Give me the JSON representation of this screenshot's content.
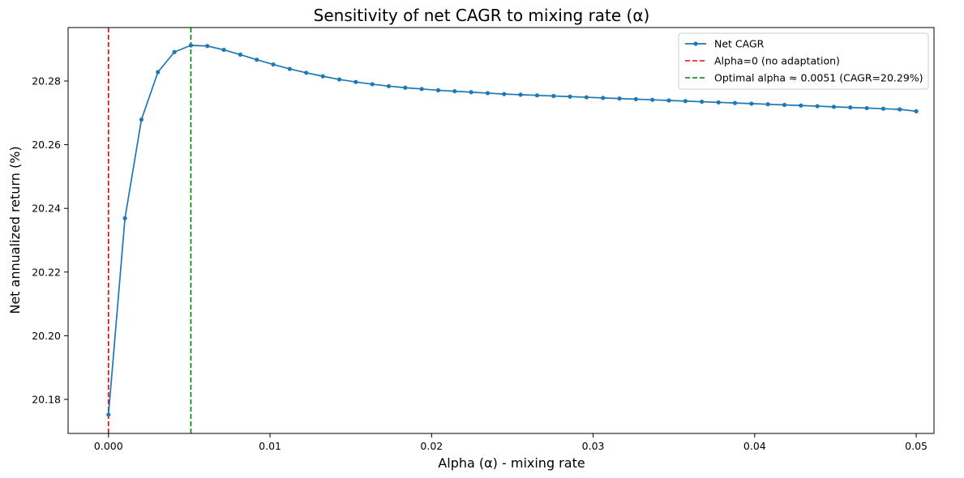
{
  "chart_data": {
    "type": "line",
    "title": "Sensitivity of net CAGR to mixing rate (α)",
    "xlabel": "Alpha (α) - mixing rate",
    "ylabel": "Net annualized return (%)",
    "xlim": [
      -0.0025,
      0.0511
    ],
    "ylim": [
      20.1693,
      20.2968
    ],
    "x_ticks": [
      0.0,
      0.01,
      0.02,
      0.03,
      0.04,
      0.05
    ],
    "x_tick_labels": [
      "0.000",
      "0.01",
      "0.02",
      "0.03",
      "0.04",
      "0.05"
    ],
    "y_ticks": [
      20.18,
      20.2,
      20.22,
      20.24,
      20.26,
      20.28
    ],
    "y_tick_labels": [
      "20.18",
      "20.20",
      "20.22",
      "20.24",
      "20.26",
      "20.28"
    ],
    "grid": false,
    "legend_position": "top-right",
    "series": [
      {
        "name": "Net CAGR",
        "color": "#1f77b4",
        "marker": "circle",
        "x": [
          0.0,
          0.00102,
          0.00204,
          0.00306,
          0.00408,
          0.0051,
          0.00612,
          0.00714,
          0.00816,
          0.00918,
          0.0102,
          0.01122,
          0.01224,
          0.01327,
          0.01429,
          0.01531,
          0.01633,
          0.01735,
          0.01837,
          0.01939,
          0.02041,
          0.02143,
          0.02245,
          0.02347,
          0.02449,
          0.02551,
          0.02653,
          0.02755,
          0.02857,
          0.02959,
          0.03061,
          0.03163,
          0.03265,
          0.03367,
          0.03469,
          0.03571,
          0.03673,
          0.03776,
          0.03878,
          0.0398,
          0.04082,
          0.04184,
          0.04286,
          0.04388,
          0.0449,
          0.04592,
          0.04694,
          0.04796,
          0.04898,
          0.05
        ],
        "values": [
          20.1752,
          20.2369,
          20.2679,
          20.2828,
          20.2891,
          20.2912,
          20.291,
          20.2898,
          20.2883,
          20.2867,
          20.2852,
          20.2838,
          20.2826,
          20.2815,
          20.2805,
          20.2797,
          20.279,
          20.2784,
          20.2779,
          20.2775,
          20.2771,
          20.2768,
          20.2765,
          20.2762,
          20.2759,
          20.2757,
          20.2755,
          20.2753,
          20.2751,
          20.2749,
          20.2747,
          20.2745,
          20.2743,
          20.2741,
          20.2739,
          20.2737,
          20.2735,
          20.2733,
          20.2731,
          20.2729,
          20.2727,
          20.2725,
          20.2723,
          20.2721,
          20.2719,
          20.2717,
          20.2715,
          20.2713,
          20.2711,
          20.2705
        ]
      }
    ],
    "vlines": [
      {
        "name": "Alpha=0 (no adaptation)",
        "x": 0.0,
        "color": "#ff0000",
        "style": "dashed"
      },
      {
        "name": "Optimal alpha ≈ 0.0051 (CAGR=20.29%)",
        "x": 0.0051,
        "color": "#008000",
        "style": "dashed"
      }
    ],
    "legend": [
      {
        "label": "Net CAGR",
        "color": "#1f77b4",
        "style": "line-marker"
      },
      {
        "label": "Alpha=0 (no adaptation)",
        "color": "#ff0000",
        "style": "dashed"
      },
      {
        "label": "Optimal alpha ≈ 0.0051 (CAGR=20.29%)",
        "color": "#008000",
        "style": "dashed"
      }
    ]
  }
}
